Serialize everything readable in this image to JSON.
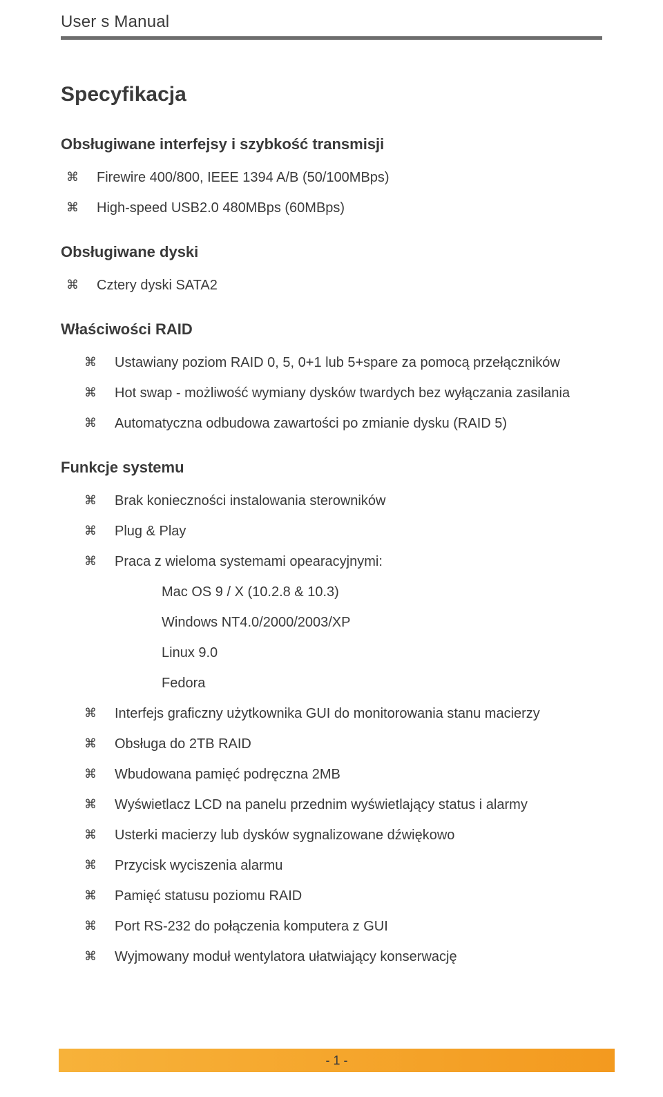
{
  "header": {
    "title": "User s Manual"
  },
  "doc": {
    "title": "Specyfikacja",
    "sections": [
      {
        "heading": "Obsługiwane interfejsy i szybkość transmisji",
        "items": [
          {
            "text": "Firewire 400/800, IEEE 1394 A/B (50/100MBps)"
          },
          {
            "text": "High-speed USB2.0 480MBps (60MBps)"
          }
        ]
      },
      {
        "heading": "Obsługiwane dyski",
        "items": [
          {
            "text": "Cztery dyski SATA2"
          }
        ]
      },
      {
        "heading": "Właściwości RAID",
        "indent": true,
        "items": [
          {
            "text": "Ustawiany poziom RAID 0, 5, 0+1 lub 5+spare za pomocą przełączników"
          },
          {
            "text": "Hot swap - możliwość wymiany dysków twardych bez wyłączania zasilania"
          },
          {
            "text": "Automatyczna odbudowa zawartości po zmianie dysku (RAID 5)"
          }
        ]
      },
      {
        "heading": "Funkcje systemu",
        "indent": true,
        "items": [
          {
            "text": "Brak konieczności instalowania sterowników"
          },
          {
            "text": "Plug & Play"
          },
          {
            "text": "Praca z wieloma systemami opearacyjnymi:",
            "sub": [
              "Mac OS 9 / X (10.2.8 & 10.3)",
              "Windows NT4.0/2000/2003/XP",
              "Linux 9.0",
              "Fedora"
            ]
          },
          {
            "text": "Interfejs graficzny użytkownika GUI do monitorowania stanu macierzy"
          },
          {
            "text": "Obsługa do 2TB RAID"
          },
          {
            "text": "Wbudowana pamięć podręczna 2MB"
          },
          {
            "text": "Wyświetlacz LCD na panelu przednim wyświetlający status i alarmy"
          },
          {
            "text": "Usterki macierzy lub dysków sygnalizowane dźwiękowo"
          },
          {
            "text": "Przycisk wyciszenia alarmu"
          },
          {
            "text": "Pamięć statusu poziomu RAID"
          },
          {
            "text": "Port RS-232 do połączenia komputera z GUI"
          },
          {
            "text": "Wyjmowany moduł wentylatora ułatwiający konserwację"
          }
        ]
      }
    ]
  },
  "footer": {
    "page_label": "- 1 -",
    "bar_gradient_from": "#f7b23a",
    "bar_gradient_to": "#f39a1f"
  },
  "style": {
    "bullet_glyph": "⌘",
    "text_color": "#3a3a3a",
    "rule_color": "#4a4a4a",
    "background": "#ffffff"
  }
}
